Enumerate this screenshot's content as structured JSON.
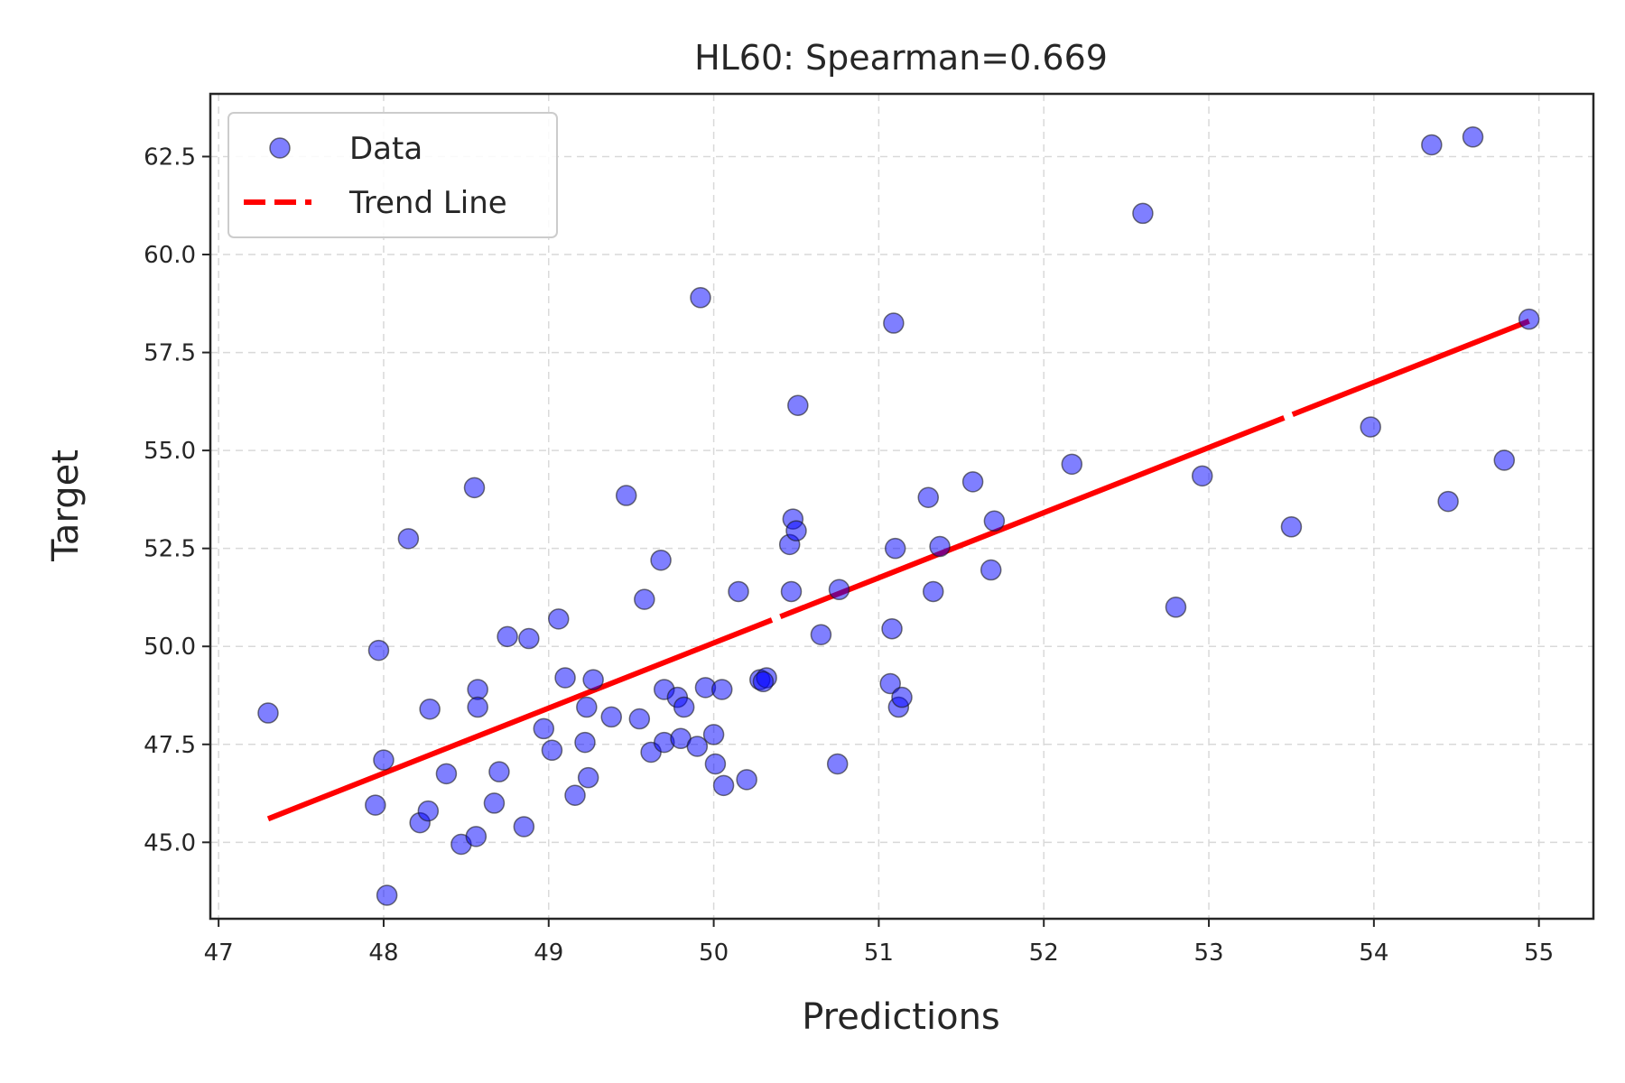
{
  "chart_data": {
    "type": "scatter",
    "title": "HL60: Spearman=0.669",
    "xlabel": "Predictions",
    "ylabel": "Target",
    "xlim": [
      46.95,
      55.33
    ],
    "ylim": [
      43.05,
      64.1
    ],
    "xticks": [
      "47",
      "48",
      "49",
      "50",
      "51",
      "52",
      "53",
      "54",
      "55"
    ],
    "yticks": [
      "45.0",
      "47.5",
      "50.0",
      "52.5",
      "55.0",
      "57.5",
      "60.0",
      "62.5"
    ],
    "grid": true,
    "legend_position": "top-left",
    "series": [
      {
        "name": "Data",
        "kind": "scatter",
        "color": "#0000ff",
        "points": [
          [
            47.3,
            48.3
          ],
          [
            47.95,
            45.95
          ],
          [
            47.97,
            49.9
          ],
          [
            48.0,
            47.1
          ],
          [
            48.02,
            43.65
          ],
          [
            48.15,
            52.75
          ],
          [
            48.22,
            45.5
          ],
          [
            48.27,
            45.8
          ],
          [
            48.28,
            48.4
          ],
          [
            48.38,
            46.75
          ],
          [
            48.47,
            44.95
          ],
          [
            48.55,
            54.05
          ],
          [
            48.56,
            45.15
          ],
          [
            48.57,
            48.9
          ],
          [
            48.57,
            48.45
          ],
          [
            48.67,
            46.0
          ],
          [
            48.7,
            46.8
          ],
          [
            48.75,
            50.25
          ],
          [
            48.85,
            45.4
          ],
          [
            48.88,
            50.2
          ],
          [
            48.97,
            47.9
          ],
          [
            49.02,
            47.35
          ],
          [
            49.06,
            50.7
          ],
          [
            49.1,
            49.2
          ],
          [
            49.16,
            46.2
          ],
          [
            49.22,
            47.55
          ],
          [
            49.23,
            48.45
          ],
          [
            49.24,
            46.65
          ],
          [
            49.27,
            49.15
          ],
          [
            49.38,
            48.2
          ],
          [
            49.47,
            53.85
          ],
          [
            49.55,
            48.15
          ],
          [
            49.58,
            51.2
          ],
          [
            49.62,
            47.3
          ],
          [
            49.68,
            52.2
          ],
          [
            49.7,
            47.55
          ],
          [
            49.7,
            48.9
          ],
          [
            49.78,
            48.7
          ],
          [
            49.8,
            47.65
          ],
          [
            49.82,
            48.45
          ],
          [
            49.9,
            47.45
          ],
          [
            49.92,
            58.9
          ],
          [
            49.95,
            48.95
          ],
          [
            50.0,
            47.75
          ],
          [
            50.01,
            47.0
          ],
          [
            50.05,
            48.9
          ],
          [
            50.06,
            46.45
          ],
          [
            50.15,
            51.4
          ],
          [
            50.2,
            46.6
          ],
          [
            50.28,
            49.15
          ],
          [
            50.32,
            49.2
          ],
          [
            50.3,
            49.1
          ],
          [
            50.46,
            52.6
          ],
          [
            50.47,
            51.4
          ],
          [
            50.48,
            53.25
          ],
          [
            50.5,
            52.95
          ],
          [
            50.51,
            56.15
          ],
          [
            50.65,
            50.3
          ],
          [
            50.75,
            47.0
          ],
          [
            50.76,
            51.45
          ],
          [
            51.07,
            49.05
          ],
          [
            51.08,
            50.45
          ],
          [
            51.09,
            58.25
          ],
          [
            51.1,
            52.5
          ],
          [
            51.12,
            48.45
          ],
          [
            51.14,
            48.7
          ],
          [
            51.3,
            53.8
          ],
          [
            51.33,
            51.4
          ],
          [
            51.37,
            52.55
          ],
          [
            51.57,
            54.2
          ],
          [
            51.68,
            51.95
          ],
          [
            51.7,
            53.2
          ],
          [
            52.17,
            54.65
          ],
          [
            52.6,
            61.05
          ],
          [
            52.8,
            51.0
          ],
          [
            52.96,
            54.35
          ],
          [
            53.5,
            53.05
          ],
          [
            53.98,
            55.6
          ],
          [
            54.35,
            62.8
          ],
          [
            54.45,
            53.7
          ],
          [
            54.6,
            63.0
          ],
          [
            54.79,
            54.75
          ],
          [
            54.94,
            58.35
          ]
        ]
      },
      {
        "name": "Trend Line",
        "kind": "line",
        "color": "#ff0000",
        "points": [
          [
            47.3,
            45.6
          ],
          [
            54.94,
            58.3
          ]
        ]
      }
    ]
  }
}
